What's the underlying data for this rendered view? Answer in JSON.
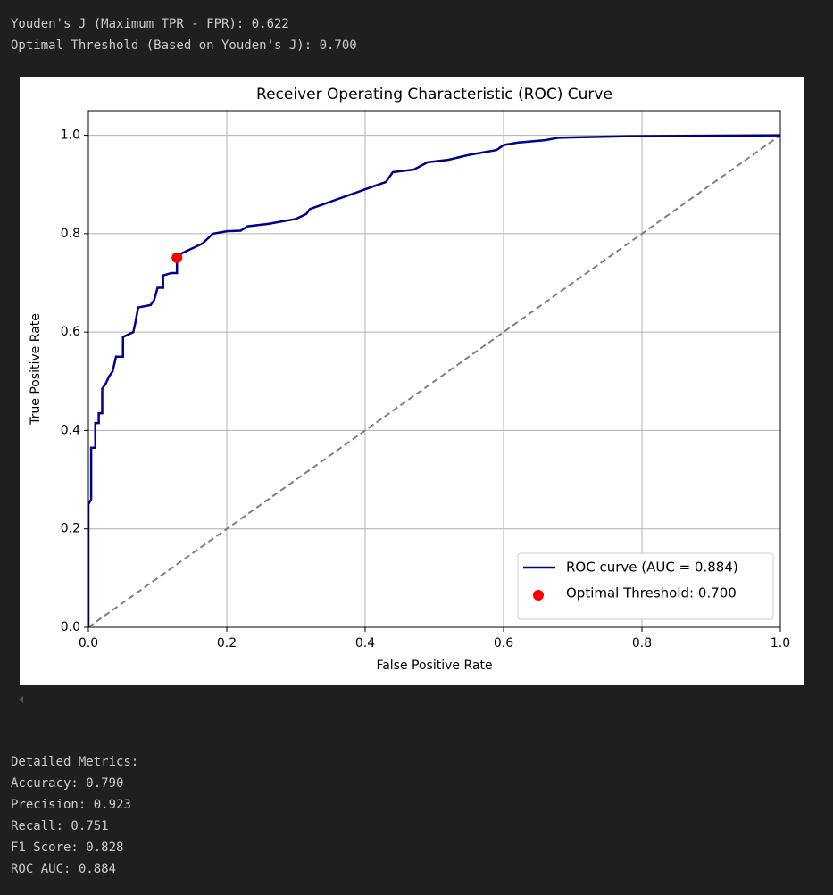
{
  "output_top": [
    "Youden's J (Maximum TPR - FPR): 0.622",
    "Optimal Threshold (Based on Youden's J): 0.700"
  ],
  "chart_data": {
    "type": "line",
    "title": "Receiver Operating Characteristic (ROC) Curve",
    "x_label": "False Positive Rate",
    "y_label": "True Positive Rate",
    "xlim": [
      0,
      1
    ],
    "ylim": [
      0,
      1.05
    ],
    "xticks": [
      {
        "value": 0,
        "label": "0.0"
      },
      0.2,
      0.4,
      0.6,
      0.8,
      {
        "value": 1,
        "label": "1.0"
      }
    ],
    "yticks": [
      {
        "value": 0,
        "label": "0.0"
      },
      0.2,
      0.4,
      0.6,
      0.8,
      {
        "value": 1,
        "label": "1.0"
      }
    ],
    "grid": true,
    "legend": "lower right",
    "series": [
      {
        "name": "ROC curve (AUC = 0.884)",
        "color": "#00008b",
        "x": [
          0,
          0,
          0.004,
          0.004,
          0.01,
          0.01,
          0.015,
          0.015,
          0.02,
          0.02,
          0.025,
          0.03,
          0.035,
          0.04,
          0.05,
          0.05,
          0.065,
          0.068,
          0.072,
          0.09,
          0.095,
          0.1,
          0.108,
          0.108,
          0.12,
          0.128,
          0.128,
          0.135,
          0.15,
          0.165,
          0.18,
          0.2,
          0.22,
          0.23,
          0.26,
          0.3,
          0.315,
          0.32,
          0.34,
          0.36,
          0.38,
          0.4,
          0.43,
          0.44,
          0.47,
          0.49,
          0.52,
          0.55,
          0.59,
          0.6,
          0.62,
          0.66,
          0.68,
          0.78,
          1
        ],
        "values": [
          0,
          0.25,
          0.26,
          0.365,
          0.365,
          0.415,
          0.415,
          0.435,
          0.435,
          0.485,
          0.495,
          0.51,
          0.52,
          0.55,
          0.55,
          0.59,
          0.6,
          0.62,
          0.65,
          0.655,
          0.665,
          0.69,
          0.69,
          0.715,
          0.72,
          0.72,
          0.751,
          0.76,
          0.77,
          0.78,
          0.8,
          0.805,
          0.806,
          0.815,
          0.82,
          0.83,
          0.84,
          0.85,
          0.86,
          0.87,
          0.88,
          0.89,
          0.905,
          0.925,
          0.93,
          0.945,
          0.95,
          0.96,
          0.97,
          0.98,
          0.985,
          0.99,
          0.995,
          0.998,
          1
        ]
      },
      {
        "name": "Optimal Threshold: 0.700",
        "type": "scatter",
        "color": "#ff0000",
        "x": [
          0.128
        ],
        "values": [
          0.751
        ]
      },
      {
        "color": "#808080",
        "dashed": true,
        "x": [
          0,
          1
        ],
        "values": [
          0,
          1
        ]
      }
    ]
  },
  "output_bottom": [
    "Detailed Metrics:",
    "Accuracy: 0.790",
    "Precision: 0.923",
    "Recall: 0.751",
    "F1 Score: 0.828",
    "ROC AUC: 0.884"
  ]
}
